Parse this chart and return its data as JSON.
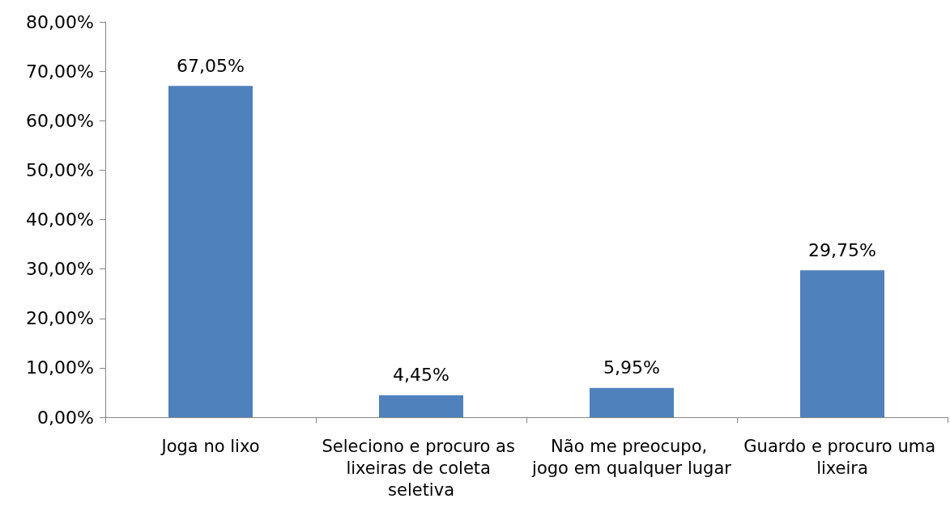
{
  "chart_data": {
    "type": "bar",
    "categories": [
      "Joga no lixo",
      "Seleciono e procuro as lixeiras de coleta seletiva",
      "Não me preocupo, jogo em qualquer lugar",
      "Guardo e procuro uma lixeira"
    ],
    "values": [
      67.05,
      4.45,
      5.95,
      29.75
    ],
    "value_labels": [
      "67,05%",
      "4,45%",
      "5,95%",
      "29,75%"
    ],
    "color": "#4f81bd",
    "ylim": [
      0,
      80
    ],
    "yticks": [
      {
        "value": 0,
        "label": "0,00%"
      },
      {
        "value": 10,
        "label": "10,00%"
      },
      {
        "value": 20,
        "label": "20,00%"
      },
      {
        "value": 30,
        "label": "30,00%"
      },
      {
        "value": 40,
        "label": "40,00%"
      },
      {
        "value": 50,
        "label": "50,00%"
      },
      {
        "value": 60,
        "label": "60,00%"
      },
      {
        "value": 70,
        "label": "70,00%"
      },
      {
        "value": 80,
        "label": "80,00%"
      }
    ],
    "grid": false
  }
}
